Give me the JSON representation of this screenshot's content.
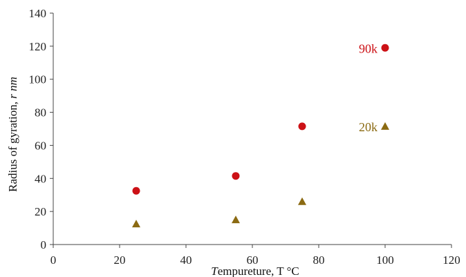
{
  "chart_data": {
    "type": "scatter",
    "title": "",
    "xlabel": "Tempureture, T °C",
    "ylabel": "Radius of gyration, r nm",
    "xlim": [
      0,
      120
    ],
    "ylim": [
      0,
      140
    ],
    "x_ticks": [
      0,
      20,
      40,
      60,
      80,
      100,
      120
    ],
    "y_ticks": [
      0,
      20,
      40,
      60,
      80,
      100,
      120,
      140
    ],
    "grid": false,
    "legend": "none",
    "series": [
      {
        "name": "90k",
        "marker": "circle",
        "color": "#cc1116",
        "x": [
          25,
          55,
          75,
          100
        ],
        "y": [
          32.5,
          41.5,
          71.5,
          119
        ]
      },
      {
        "name": "20k",
        "marker": "triangle",
        "color": "#8b6a12",
        "x": [
          25,
          55,
          75,
          100
        ],
        "y": [
          12.5,
          15,
          26,
          71.5
        ]
      }
    ]
  }
}
